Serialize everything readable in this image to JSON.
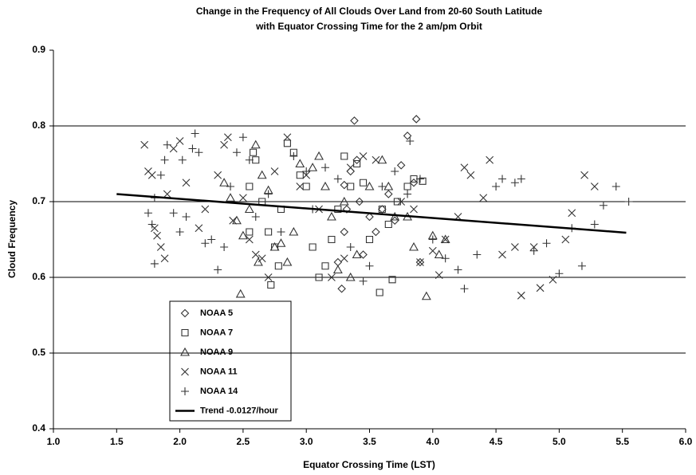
{
  "chart_data": {
    "type": "scatter",
    "title": "Change in the Frequency of All Clouds Over Land from 20-60 South Latitude",
    "subtitle": "with Equator Crossing Time for the 2 am/pm Orbit",
    "x_label": "Equator Crossing Time (LST)",
    "y_label": "Cloud Frequency",
    "xlim": [
      1,
      6
    ],
    "ylim": [
      0.4,
      0.9
    ],
    "xticks": [
      {
        "value": 1,
        "label": "1.0"
      },
      1.5,
      {
        "value": 2,
        "label": "2.0"
      },
      2.5,
      {
        "value": 3,
        "label": "3.0"
      },
      3.5,
      {
        "value": 4,
        "label": "4.0"
      },
      4.5,
      {
        "value": 5,
        "label": "5.0"
      },
      5.5,
      {
        "value": 6,
        "label": "6.0"
      }
    ],
    "yticks": [
      0.4,
      0.5,
      0.6,
      0.7,
      0.8,
      0.9
    ],
    "grid": true,
    "series": [
      {
        "name": "NOAA 5",
        "marker": "diamond",
        "color": "#333333",
        "x": [
          3.38,
          3.87,
          3.8,
          3.75,
          3.3,
          3.35,
          3.42,
          3.45,
          3.3,
          3.28,
          3.5,
          3.6,
          3.65,
          3.85,
          3.9,
          3.55,
          3.4,
          3.32,
          3.7,
          3.25
        ],
        "values": [
          0.807,
          0.809,
          0.787,
          0.748,
          0.722,
          0.74,
          0.7,
          0.63,
          0.66,
          0.585,
          0.68,
          0.69,
          0.71,
          0.725,
          0.62,
          0.66,
          0.755,
          0.69,
          0.675,
          0.62
        ]
      },
      {
        "name": "NOAA 7",
        "marker": "square",
        "color": "#333333",
        "x": [
          2.58,
          2.6,
          2.85,
          2.9,
          2.55,
          2.65,
          2.7,
          2.75,
          2.72,
          2.78,
          2.8,
          2.95,
          3.0,
          3.05,
          3.1,
          3.15,
          3.2,
          3.3,
          3.35,
          3.4,
          3.45,
          3.5,
          3.58,
          3.6,
          3.68,
          3.72,
          3.8,
          3.85,
          3.92,
          3.25,
          3.65,
          2.55
        ],
        "values": [
          0.765,
          0.755,
          0.777,
          0.765,
          0.72,
          0.7,
          0.66,
          0.64,
          0.59,
          0.615,
          0.69,
          0.735,
          0.72,
          0.64,
          0.6,
          0.615,
          0.65,
          0.76,
          0.72,
          0.75,
          0.725,
          0.65,
          0.58,
          0.69,
          0.597,
          0.7,
          0.72,
          0.73,
          0.727,
          0.69,
          0.67,
          0.66
        ]
      },
      {
        "name": "NOAA 9",
        "marker": "triangle",
        "color": "#333333",
        "x": [
          2.48,
          2.4,
          2.45,
          2.5,
          2.55,
          2.6,
          2.65,
          2.7,
          2.62,
          2.75,
          2.8,
          2.85,
          2.9,
          2.95,
          3.05,
          3.1,
          3.15,
          3.2,
          3.25,
          3.35,
          3.4,
          3.5,
          3.6,
          3.65,
          3.7,
          3.8,
          3.85,
          3.95,
          4.0,
          4.05,
          4.1,
          2.35,
          3.3
        ],
        "values": [
          0.578,
          0.705,
          0.675,
          0.655,
          0.69,
          0.775,
          0.735,
          0.715,
          0.62,
          0.64,
          0.645,
          0.62,
          0.66,
          0.75,
          0.745,
          0.76,
          0.72,
          0.68,
          0.61,
          0.6,
          0.63,
          0.72,
          0.755,
          0.72,
          0.68,
          0.68,
          0.64,
          0.575,
          0.655,
          0.63,
          0.65,
          0.725,
          0.7
        ]
      },
      {
        "name": "NOAA 11",
        "marker": "cross",
        "color": "#333333",
        "x": [
          1.72,
          1.75,
          1.78,
          1.8,
          1.82,
          1.85,
          1.88,
          1.9,
          1.95,
          2.0,
          2.05,
          2.15,
          2.2,
          2.3,
          2.35,
          2.38,
          2.42,
          2.5,
          2.55,
          2.6,
          2.65,
          2.7,
          2.75,
          2.85,
          2.95,
          3.0,
          3.1,
          3.2,
          3.3,
          3.35,
          3.45,
          3.55,
          3.75,
          3.85,
          3.9,
          4.0,
          4.05,
          4.1,
          4.2,
          4.25,
          4.3,
          4.4,
          4.45,
          4.55,
          4.65,
          4.7,
          4.8,
          4.85,
          4.95,
          5.05,
          5.1,
          5.2,
          5.28
        ],
        "values": [
          0.775,
          0.74,
          0.735,
          0.665,
          0.655,
          0.64,
          0.625,
          0.71,
          0.77,
          0.78,
          0.725,
          0.665,
          0.69,
          0.735,
          0.775,
          0.785,
          0.675,
          0.705,
          0.65,
          0.63,
          0.625,
          0.6,
          0.74,
          0.785,
          0.72,
          0.735,
          0.69,
          0.6,
          0.625,
          0.745,
          0.76,
          0.755,
          0.7,
          0.69,
          0.62,
          0.635,
          0.603,
          0.65,
          0.68,
          0.745,
          0.735,
          0.705,
          0.755,
          0.63,
          0.64,
          0.576,
          0.64,
          0.586,
          0.597,
          0.65,
          0.685,
          0.735,
          0.72
        ]
      },
      {
        "name": "NOAA 14",
        "marker": "plus",
        "color": "#333333",
        "x": [
          1.75,
          1.78,
          1.8,
          1.8,
          1.85,
          1.88,
          1.9,
          1.95,
          2.0,
          2.02,
          2.05,
          2.1,
          2.12,
          2.15,
          2.2,
          2.25,
          2.3,
          2.35,
          2.4,
          2.45,
          2.5,
          2.55,
          2.6,
          2.7,
          2.8,
          2.9,
          3.0,
          3.05,
          3.15,
          3.25,
          3.35,
          3.45,
          3.5,
          3.6,
          3.7,
          3.8,
          3.82,
          3.9,
          4.0,
          4.1,
          4.2,
          4.25,
          4.35,
          4.5,
          4.55,
          4.65,
          4.7,
          4.8,
          4.9,
          5.0,
          5.1,
          5.18,
          5.28,
          5.35,
          5.45,
          5.55
        ],
        "values": [
          0.685,
          0.67,
          0.618,
          0.705,
          0.735,
          0.755,
          0.775,
          0.685,
          0.66,
          0.755,
          0.68,
          0.77,
          0.79,
          0.765,
          0.645,
          0.65,
          0.61,
          0.64,
          0.72,
          0.765,
          0.785,
          0.755,
          0.68,
          0.71,
          0.66,
          0.76,
          0.74,
          0.69,
          0.745,
          0.73,
          0.64,
          0.595,
          0.615,
          0.72,
          0.74,
          0.71,
          0.78,
          0.73,
          0.65,
          0.625,
          0.61,
          0.585,
          0.63,
          0.72,
          0.73,
          0.725,
          0.73,
          0.635,
          0.645,
          0.605,
          0.665,
          0.615,
          0.67,
          0.695,
          0.72,
          0.7
        ]
      },
      {
        "name": "Trend -0.0127/hour",
        "type": "line",
        "color": "#000000",
        "x": [
          1.5,
          5.53
        ],
        "values": [
          0.71,
          0.659
        ]
      }
    ]
  }
}
